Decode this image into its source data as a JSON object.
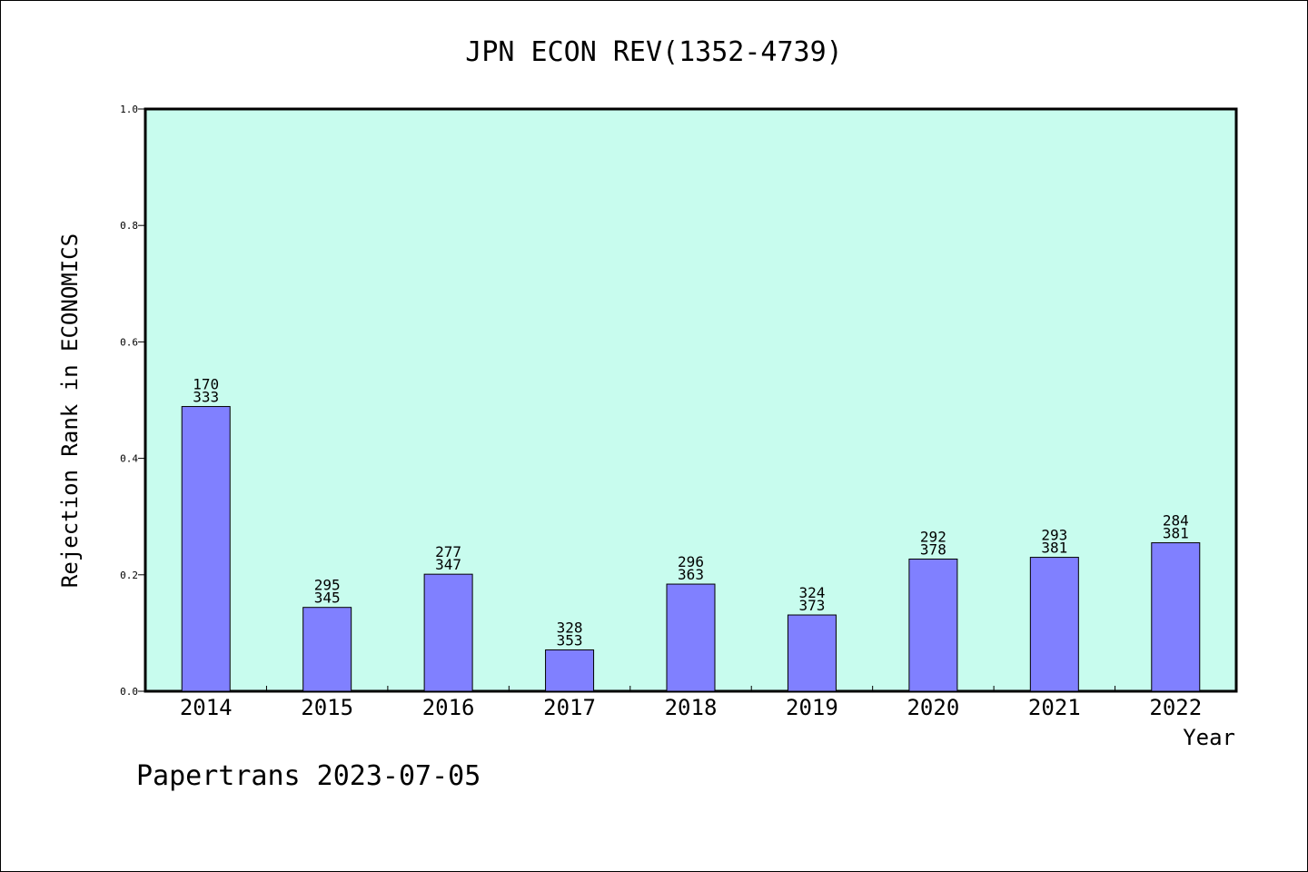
{
  "footer": {
    "text": "Papertrans 2023-07-05"
  },
  "colors": {
    "plot_background": "#c8fcee",
    "bar_fill": "#8080ff",
    "bar_stroke": "#000000"
  },
  "chart_data": {
    "type": "bar",
    "title": "JPN ECON REV(1352-4739)",
    "xlabel": "Year",
    "ylabel": "Rejection Rank in ECONOMICS",
    "ylim": [
      0,
      1.0
    ],
    "yticks": [
      "0.0",
      "0.2",
      "0.4",
      "0.6",
      "0.8",
      "1.0"
    ],
    "categories": [
      "2014",
      "2015",
      "2016",
      "2017",
      "2018",
      "2019",
      "2020",
      "2021",
      "2022"
    ],
    "values": [
      0.489,
      0.144,
      0.201,
      0.071,
      0.184,
      0.131,
      0.227,
      0.23,
      0.255
    ],
    "labels_top": [
      "170",
      "295",
      "277",
      "328",
      "296",
      "324",
      "292",
      "293",
      "284"
    ],
    "labels_bottom": [
      "333",
      "345",
      "347",
      "353",
      "363",
      "373",
      "378",
      "381",
      "381"
    ],
    "grid": false,
    "legend": "none"
  }
}
